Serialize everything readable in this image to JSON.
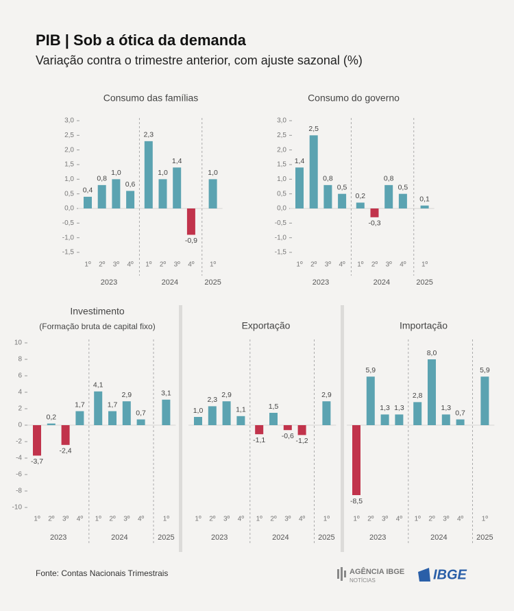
{
  "header": {
    "title": "PIB | Sob a ótica da demanda",
    "subtitle": "Variação contra o trimestre anterior, com ajuste sazonal (%)"
  },
  "chart_data": [
    {
      "type": "bar",
      "title": "Consumo das famílias",
      "categories": [
        [
          "1º",
          "2023"
        ],
        [
          "2º",
          "2023"
        ],
        [
          "3º",
          "2023"
        ],
        [
          "4º",
          "2023"
        ],
        [
          "1º",
          "2024"
        ],
        [
          "2º",
          "2024"
        ],
        [
          "3º",
          "2024"
        ],
        [
          "4º",
          "2024"
        ],
        [
          "1º",
          "2025"
        ]
      ],
      "values": [
        0.4,
        0.8,
        1.0,
        0.6,
        2.3,
        1.0,
        1.4,
        -0.9,
        1.0
      ],
      "value_labels": [
        "0,4",
        "0,8",
        "1,0",
        "0,6",
        "2,3",
        "1,0",
        "1,4",
        "-0,9",
        "1,0"
      ],
      "color": "#5ba3b1",
      "negative_color": "#c1334b",
      "ylim": [
        -1.5,
        3.0
      ],
      "yticks": [
        {
          "value": -1.5,
          "label": "-1,5"
        },
        {
          "value": -1.0,
          "label": "-1,0"
        },
        {
          "value": -0.5,
          "label": "-0,5"
        },
        {
          "value": 0.0,
          "label": "0,0"
        },
        {
          "value": 0.5,
          "label": "0,5"
        },
        {
          "value": 1.0,
          "label": "1,0"
        },
        {
          "value": 1.5,
          "label": "1,5"
        },
        {
          "value": 2.0,
          "label": "2,0"
        },
        {
          "value": 2.5,
          "label": "2,5"
        },
        {
          "value": 3.0,
          "label": "3,0"
        }
      ]
    },
    {
      "type": "bar",
      "title": "Consumo do governo",
      "categories": [
        [
          "1º",
          "2023"
        ],
        [
          "2º",
          "2023"
        ],
        [
          "3º",
          "2023"
        ],
        [
          "4º",
          "2023"
        ],
        [
          "1º",
          "2024"
        ],
        [
          "2º",
          "2024"
        ],
        [
          "3º",
          "2024"
        ],
        [
          "4º",
          "2024"
        ],
        [
          "1º",
          "2025"
        ]
      ],
      "values": [
        1.4,
        2.5,
        0.8,
        0.5,
        0.2,
        -0.3,
        0.8,
        0.5,
        0.1
      ],
      "value_labels": [
        "1,4",
        "2,5",
        "0,8",
        "0,5",
        "0,2",
        "-0,3",
        "0,8",
        "0,5",
        "0,1"
      ],
      "color": "#5ba3b1",
      "negative_color": "#c1334b",
      "ylim": [
        -1.5,
        3.0
      ],
      "yticks": [
        {
          "value": -1.5,
          "label": "-1,5"
        },
        {
          "value": -1.0,
          "label": "-1,0"
        },
        {
          "value": -0.5,
          "label": "-0,5"
        },
        {
          "value": 0.0,
          "label": "0,0"
        },
        {
          "value": 0.5,
          "label": "0,5"
        },
        {
          "value": 1.0,
          "label": "1,0"
        },
        {
          "value": 1.5,
          "label": "1,5"
        },
        {
          "value": 2.0,
          "label": "2,0"
        },
        {
          "value": 2.5,
          "label": "2,5"
        },
        {
          "value": 3.0,
          "label": "3,0"
        }
      ]
    },
    {
      "type": "bar",
      "title": "Investimento",
      "subtitle": "(Formação bruta de capital fixo)",
      "categories": [
        [
          "1º",
          "2023"
        ],
        [
          "2º",
          "2023"
        ],
        [
          "3º",
          "2023"
        ],
        [
          "4º",
          "2023"
        ],
        [
          "1º",
          "2024"
        ],
        [
          "2º",
          "2024"
        ],
        [
          "3º",
          "2024"
        ],
        [
          "4º",
          "2024"
        ],
        [
          "1º",
          "2025"
        ]
      ],
      "values": [
        -3.7,
        0.2,
        -2.4,
        1.7,
        4.1,
        1.7,
        2.9,
        0.7,
        3.1
      ],
      "value_labels": [
        "-3,7",
        "0,2",
        "-2,4",
        "1,7",
        "4,1",
        "1,7",
        "2,9",
        "0,7",
        "3,1"
      ],
      "color": "#5ba3b1",
      "negative_color": "#c1334b",
      "ylim": [
        -10,
        10
      ],
      "yticks": [
        -10,
        -8,
        -6,
        -4,
        -2,
        0,
        2,
        4,
        6,
        8,
        10
      ]
    },
    {
      "type": "bar",
      "title": "Exportação",
      "categories": [
        [
          "1º",
          "2023"
        ],
        [
          "2º",
          "2023"
        ],
        [
          "3º",
          "2023"
        ],
        [
          "4º",
          "2023"
        ],
        [
          "1º",
          "2024"
        ],
        [
          "2º",
          "2024"
        ],
        [
          "3º",
          "2024"
        ],
        [
          "4º",
          "2024"
        ],
        [
          "1º",
          "2025"
        ]
      ],
      "values": [
        1.0,
        2.3,
        2.9,
        1.1,
        -1.1,
        1.5,
        -0.6,
        -1.2,
        2.9
      ],
      "value_labels": [
        "1,0",
        "2,3",
        "2,9",
        "1,1",
        "-1,1",
        "1,5",
        "-0,6",
        "-1,2",
        "2,9"
      ],
      "color": "#5ba3b1",
      "negative_color": "#c1334b",
      "ylim": [
        -10,
        10
      ]
    },
    {
      "type": "bar",
      "title": "Importação",
      "categories": [
        [
          "1º",
          "2023"
        ],
        [
          "2º",
          "2023"
        ],
        [
          "3º",
          "2023"
        ],
        [
          "4º",
          "2023"
        ],
        [
          "1º",
          "2024"
        ],
        [
          "2º",
          "2024"
        ],
        [
          "3º",
          "2024"
        ],
        [
          "4º",
          "2024"
        ],
        [
          "1º",
          "2025"
        ]
      ],
      "values": [
        -8.5,
        5.9,
        1.3,
        1.3,
        2.8,
        8.0,
        1.3,
        0.7,
        5.9
      ],
      "value_labels": [
        "-8,5",
        "5,9",
        "1,3",
        "1,3",
        "2,8",
        "8,0",
        "1,3",
        "0,7",
        "5,9"
      ],
      "color": "#5ba3b1",
      "negative_color": "#c1334b",
      "ylim": [
        -10,
        10
      ]
    }
  ],
  "footer": {
    "source": "Fonte: Contas Nacionais Trimestrais",
    "agency": "AGÊNCIA IBGE",
    "agency_sub": "NOTÍCIAS",
    "logo": "IBGE"
  }
}
